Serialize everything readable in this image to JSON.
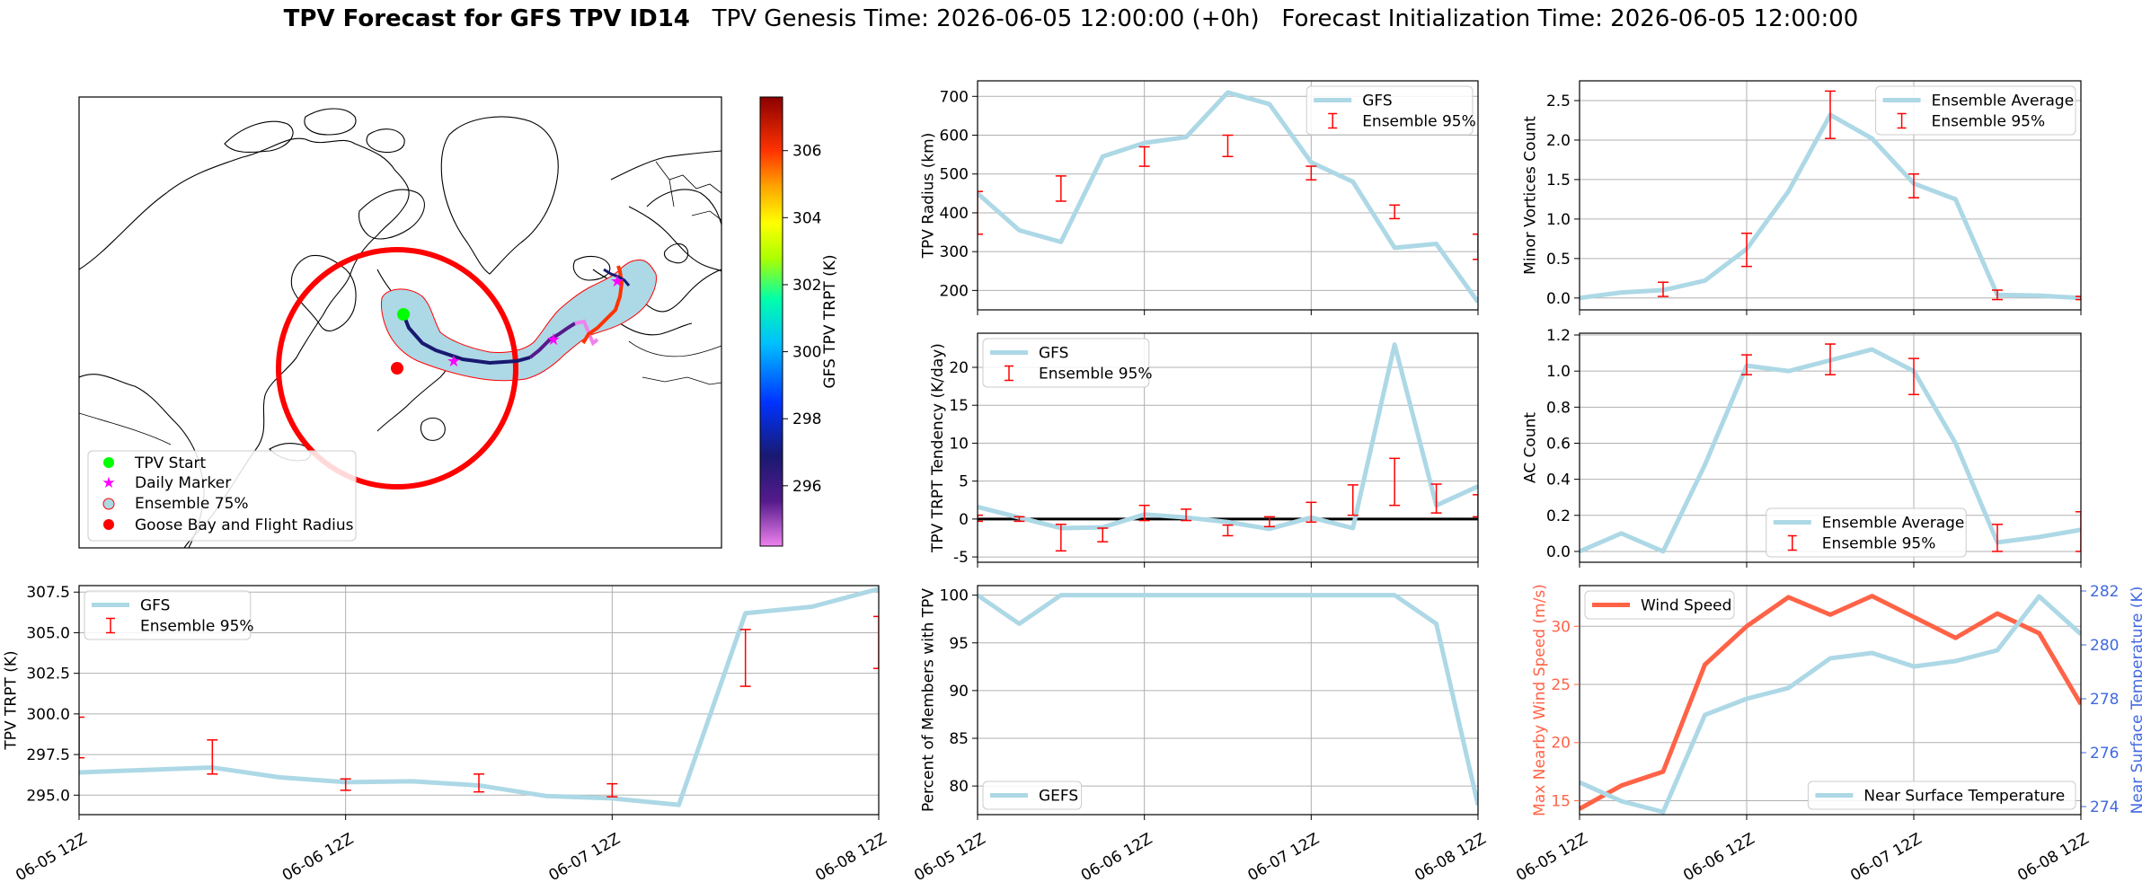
{
  "header": {
    "title_bold": "TPV Forecast for GFS TPV ID14",
    "title_rest": "   TPV Genesis Time: 2026-06-05 12:00:00 (+0h)   Forecast Initialization Time: 2026-06-05 12:00:00"
  },
  "colors": {
    "gfs_line": "#add8e6",
    "error_bar": "#ff0000",
    "wind_speed": "#ff6347",
    "temperature_axis": "#4169e1",
    "flight_radius": "#ff0000",
    "tpv_start": "#00ff00",
    "daily_marker": "#ff00ff",
    "ensemble_fill": "#add8e6"
  },
  "map": {
    "colorbar_label": "GFS TPV TRPT (K)",
    "colorbar_ticks": [
      "296",
      "298",
      "300",
      "302",
      "304",
      "306"
    ],
    "colorbar_range": [
      294.2,
      307.6
    ],
    "legend": [
      "TPV Start",
      "Daily Marker",
      "Ensemble 75%",
      "Goose Bay and Flight Radius"
    ]
  },
  "x_ticks": [
    "06-05 12Z",
    "06-06 12Z",
    "06-07 12Z",
    "06-08 12Z"
  ],
  "chart_data": [
    {
      "id": "radius",
      "type": "line",
      "ylabel": "TPV Radius (km)",
      "ylim": [
        150,
        740
      ],
      "yticks": [
        200,
        300,
        400,
        500,
        600,
        700
      ],
      "grid": true,
      "legend_position": "top-right",
      "legend": [
        "GFS",
        "Ensemble 95%"
      ],
      "x": [
        0,
        0.25,
        0.5,
        0.75,
        1,
        1.25,
        1.5,
        1.75,
        2,
        2.25,
        2.5,
        2.75,
        3
      ],
      "series": [
        {
          "name": "GFS",
          "values": [
            450,
            355,
            325,
            545,
            580,
            595,
            710,
            680,
            530,
            480,
            310,
            320,
            170
          ]
        }
      ],
      "errorbars": [
        {
          "x": 0,
          "low": 345,
          "high": 455
        },
        {
          "x": 0.5,
          "low": 430,
          "high": 495
        },
        {
          "x": 1,
          "low": 520,
          "high": 570
        },
        {
          "x": 1.5,
          "low": 545,
          "high": 600
        },
        {
          "x": 2,
          "low": 485,
          "high": 520
        },
        {
          "x": 2.5,
          "low": 385,
          "high": 420
        },
        {
          "x": 3,
          "low": 280,
          "high": 345
        }
      ]
    },
    {
      "id": "minor",
      "type": "line",
      "ylabel": "Minor Vortices Count",
      "ylim": [
        -0.15,
        2.75
      ],
      "yticks": [
        0.0,
        0.5,
        1.0,
        1.5,
        2.0,
        2.5
      ],
      "grid": true,
      "legend_position": "top-right",
      "legend": [
        "Ensemble Average",
        "Ensemble 95%"
      ],
      "x": [
        0,
        0.25,
        0.5,
        0.75,
        1,
        1.25,
        1.5,
        1.75,
        2,
        2.25,
        2.5,
        2.75,
        3
      ],
      "series": [
        {
          "name": "Ensemble Average",
          "values": [
            0.0,
            0.07,
            0.1,
            0.22,
            0.62,
            1.35,
            2.32,
            2.02,
            1.45,
            1.25,
            0.04,
            0.03,
            0.0
          ]
        }
      ],
      "errorbars": [
        {
          "x": 0.5,
          "low": 0.02,
          "high": 0.2
        },
        {
          "x": 1,
          "low": 0.4,
          "high": 0.82
        },
        {
          "x": 1.5,
          "low": 2.02,
          "high": 2.62
        },
        {
          "x": 2,
          "low": 1.27,
          "high": 1.57
        },
        {
          "x": 2.5,
          "low": -0.02,
          "high": 0.1
        },
        {
          "x": 3,
          "low": -0.02,
          "high": 0.02
        }
      ]
    },
    {
      "id": "tendency",
      "type": "line",
      "ylabel": "TPV TRPT Tendency (K/day)",
      "ylim": [
        -5.7,
        24.5
      ],
      "yticks": [
        -5,
        0,
        5,
        10,
        15,
        20
      ],
      "grid": true,
      "legend_position": "top-left",
      "zero_line": true,
      "legend": [
        "GFS",
        "Ensemble 95%"
      ],
      "x": [
        0,
        0.25,
        0.5,
        0.75,
        1,
        1.25,
        1.5,
        1.75,
        2,
        2.25,
        2.5,
        2.75,
        3
      ],
      "series": [
        {
          "name": "GFS",
          "values": [
            1.6,
            0.2,
            -1.2,
            -1.1,
            0.6,
            0.2,
            -0.4,
            -1.3,
            0.2,
            -1.2,
            23.0,
            1.8,
            4.3
          ]
        }
      ],
      "errorbars": [
        {
          "x": 0,
          "low": -0.3,
          "high": 0.5
        },
        {
          "x": 0.25,
          "low": -0.3,
          "high": 0.3
        },
        {
          "x": 0.5,
          "low": -4.2,
          "high": -0.7
        },
        {
          "x": 0.75,
          "low": -3.0,
          "high": -1.2
        },
        {
          "x": 1,
          "low": -0.2,
          "high": 1.8
        },
        {
          "x": 1.25,
          "low": -0.2,
          "high": 1.3
        },
        {
          "x": 1.5,
          "low": -2.2,
          "high": -0.8
        },
        {
          "x": 1.75,
          "low": -1.0,
          "high": 0.3
        },
        {
          "x": 2,
          "low": -0.4,
          "high": 2.2
        },
        {
          "x": 2.25,
          "low": 0.5,
          "high": 4.5
        },
        {
          "x": 2.5,
          "low": 1.8,
          "high": 8.0
        },
        {
          "x": 2.75,
          "low": 0.8,
          "high": 4.6
        },
        {
          "x": 3,
          "low": 0.3,
          "high": 3.2
        }
      ]
    },
    {
      "id": "ac",
      "type": "line",
      "ylabel": "AC Count",
      "ylim": [
        -0.06,
        1.21
      ],
      "yticks": [
        0.0,
        0.2,
        0.4,
        0.6,
        0.8,
        1.0,
        1.2
      ],
      "grid": true,
      "legend_position": "bottom-center",
      "legend": [
        "Ensemble Average",
        "Ensemble 95%"
      ],
      "x": [
        0,
        0.25,
        0.5,
        0.75,
        1,
        1.25,
        1.5,
        1.75,
        2,
        2.25,
        2.5,
        2.75,
        3
      ],
      "series": [
        {
          "name": "Ensemble Average",
          "values": [
            0.0,
            0.1,
            0.0,
            0.48,
            1.03,
            1.0,
            1.06,
            1.12,
            1.0,
            0.6,
            0.05,
            0.08,
            0.12
          ]
        }
      ],
      "errorbars": [
        {
          "x": 1,
          "low": 0.98,
          "high": 1.09
        },
        {
          "x": 1.5,
          "low": 0.98,
          "high": 1.15
        },
        {
          "x": 2,
          "low": 0.87,
          "high": 1.07
        },
        {
          "x": 2.5,
          "low": 0.0,
          "high": 0.15
        },
        {
          "x": 3,
          "low": 0.0,
          "high": 0.22
        }
      ]
    },
    {
      "id": "trpt",
      "type": "line",
      "ylabel": "TPV TRPT (K)",
      "ylim": [
        293.8,
        307.9
      ],
      "yticks": [
        295.0,
        297.5,
        300.0,
        302.5,
        305.0,
        307.5
      ],
      "ytick_labels": [
        "295.0",
        "297.5",
        "300.0",
        "302.5",
        "305.0",
        "307.5"
      ],
      "grid": true,
      "legend_position": "top-left",
      "legend": [
        "GFS",
        "Ensemble 95%"
      ],
      "x": [
        0,
        0.25,
        0.5,
        0.75,
        1,
        1.25,
        1.5,
        1.75,
        2,
        2.25,
        2.5,
        2.75,
        3
      ],
      "series": [
        {
          "name": "GFS",
          "values": [
            296.4,
            296.55,
            296.7,
            296.1,
            295.8,
            295.85,
            295.6,
            294.95,
            294.8,
            294.4,
            306.2,
            306.6,
            307.7
          ]
        }
      ],
      "errorbars": [
        {
          "x": 0,
          "low": 297.3,
          "high": 299.8
        },
        {
          "x": 0.5,
          "low": 296.3,
          "high": 298.4
        },
        {
          "x": 1,
          "low": 295.3,
          "high": 296.0
        },
        {
          "x": 1.5,
          "low": 295.2,
          "high": 296.3
        },
        {
          "x": 2,
          "low": 294.9,
          "high": 295.7
        },
        {
          "x": 2.5,
          "low": 301.7,
          "high": 305.2
        },
        {
          "x": 3,
          "low": 302.8,
          "high": 306.0
        }
      ]
    },
    {
      "id": "percent",
      "type": "line",
      "ylabel": "Percent of Members with TPV",
      "ylim": [
        77,
        101
      ],
      "yticks": [
        80,
        85,
        90,
        95,
        100
      ],
      "grid": true,
      "legend_position": "bottom-left",
      "legend": [
        "GEFS"
      ],
      "x": [
        0,
        0.25,
        0.5,
        0.75,
        1,
        1.25,
        1.5,
        1.75,
        2,
        2.25,
        2.5,
        2.75,
        3
      ],
      "series": [
        {
          "name": "GEFS",
          "values": [
            100,
            97,
            100,
            100,
            100,
            100,
            100,
            100,
            100,
            100,
            100,
            97,
            78
          ]
        }
      ],
      "errorbars": []
    },
    {
      "id": "wind",
      "type": "line",
      "ylabel": "Max Nearby Wind Speed (m/s)",
      "ylim": [
        13.8,
        33.5
      ],
      "yticks": [
        15,
        20,
        25,
        30
      ],
      "y2label": "Near Surface Temperature (K)",
      "y2lim": [
        273.7,
        282.2
      ],
      "y2ticks": [
        274,
        276,
        278,
        280,
        282
      ],
      "grid": true,
      "legend": [
        "Wind Speed",
        "Near Surface Temperature"
      ],
      "x": [
        0,
        0.25,
        0.5,
        0.75,
        1,
        1.25,
        1.5,
        1.75,
        2,
        2.25,
        2.5,
        2.75,
        3
      ],
      "series": [
        {
          "name": "Wind Speed",
          "axis": "left",
          "values": [
            14.3,
            16.3,
            17.5,
            26.7,
            30.0,
            32.5,
            31.0,
            32.6,
            30.8,
            29.0,
            31.1,
            29.4,
            23.3
          ]
        },
        {
          "name": "Near Surface Temperature",
          "axis": "right",
          "values": [
            274.9,
            274.2,
            273.8,
            277.4,
            278.0,
            278.4,
            279.5,
            279.7,
            279.2,
            279.4,
            279.8,
            281.8,
            280.4
          ]
        }
      ],
      "errorbars": []
    }
  ]
}
